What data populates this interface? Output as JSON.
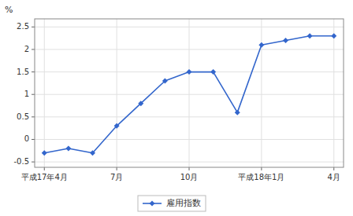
{
  "chart_data": {
    "type": "line",
    "ylabel": "%",
    "categories": [
      "平成17年4月",
      null,
      null,
      "7月",
      null,
      null,
      "10月",
      null,
      null,
      "平成18年1月",
      null,
      null,
      "4月"
    ],
    "series": [
      {
        "name": "雇用指数",
        "color": "#3366cc",
        "marker": "diamond",
        "values": [
          -0.3,
          -0.2,
          -0.3,
          0.3,
          0.8,
          1.3,
          1.5,
          1.5,
          0.6,
          2.1,
          2.2,
          2.3,
          2.3
        ]
      }
    ],
    "ylim": [
      -0.62,
      2.68
    ],
    "yticks": [
      -0.5,
      0,
      0.5,
      1,
      1.5,
      2,
      2.5
    ],
    "grid": true,
    "legend": "bottom"
  }
}
